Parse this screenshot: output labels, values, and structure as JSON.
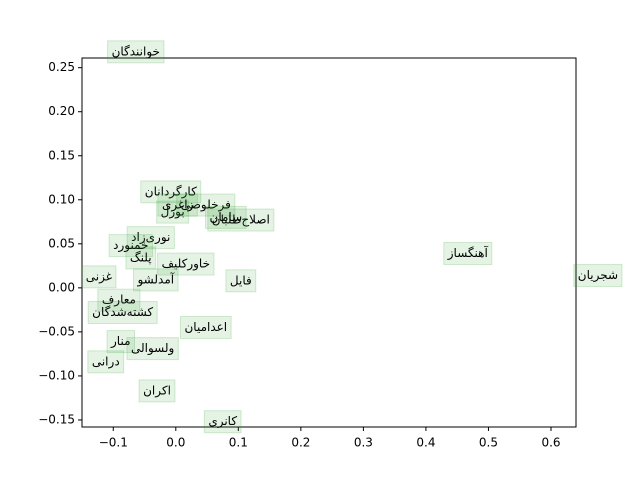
{
  "chart_data": {
    "type": "scatter",
    "x": [
      -0.064,
      -0.008,
      -0.005,
      0.048,
      0.003,
      0.104,
      0.08,
      0.467,
      0.675,
      -0.04,
      -0.072,
      -0.056,
      0.016,
      -0.123,
      -0.032,
      0.104,
      -0.091,
      -0.085,
      0.048,
      -0.088,
      -0.037,
      -0.112,
      -0.03,
      0.075
    ],
    "values": [
      0.268,
      0.109,
      0.086,
      0.094,
      0.094,
      0.077,
      0.08,
      0.039,
      0.014,
      0.057,
      0.048,
      0.034,
      0.027,
      0.0125,
      0.009,
      0.008,
      -0.014,
      -0.028,
      -0.045,
      -0.061,
      -0.069,
      -0.084,
      -0.117,
      -0.152
    ],
    "labels": [
      "خوانندگان",
      "کارگردانان",
      "بورل",
      "فرخلوصی",
      "زاغری",
      "اصلاح‌طلبان",
      "سامان",
      "آهنگساز",
      "شجریان",
      "نوری‌زاد",
      "خمنورد",
      "پلنگ",
      "خاورکلیف",
      "غزنی",
      "آمدلشو",
      "فایل",
      "معارف",
      "کشته‌شدگان",
      "اعدامیان",
      "منار",
      "ولسوالی",
      "درانی",
      "اکران",
      "کانری"
    ],
    "color": "#2ca02c",
    "xlim": [
      -0.15,
      0.64
    ],
    "ylim": [
      -0.158,
      0.261
    ],
    "xticks": [
      {
        "value": -0.1,
        "label": "−0.1"
      },
      {
        "value": 0,
        "label": "0.0"
      },
      0.1,
      0.2,
      0.3,
      0.4,
      0.5,
      0.6
    ],
    "yticks": [
      {
        "value": -0.15,
        "label": "−0.15"
      },
      {
        "value": -0.1,
        "label": "−0.10"
      },
      {
        "value": -0.05,
        "label": "−0.05"
      },
      {
        "value": 0,
        "label": "0.00"
      },
      0.05,
      {
        "value": 0.1,
        "label": "0.10"
      },
      0.15,
      {
        "value": 0.2,
        "label": "0.20"
      },
      0.25
    ]
  }
}
